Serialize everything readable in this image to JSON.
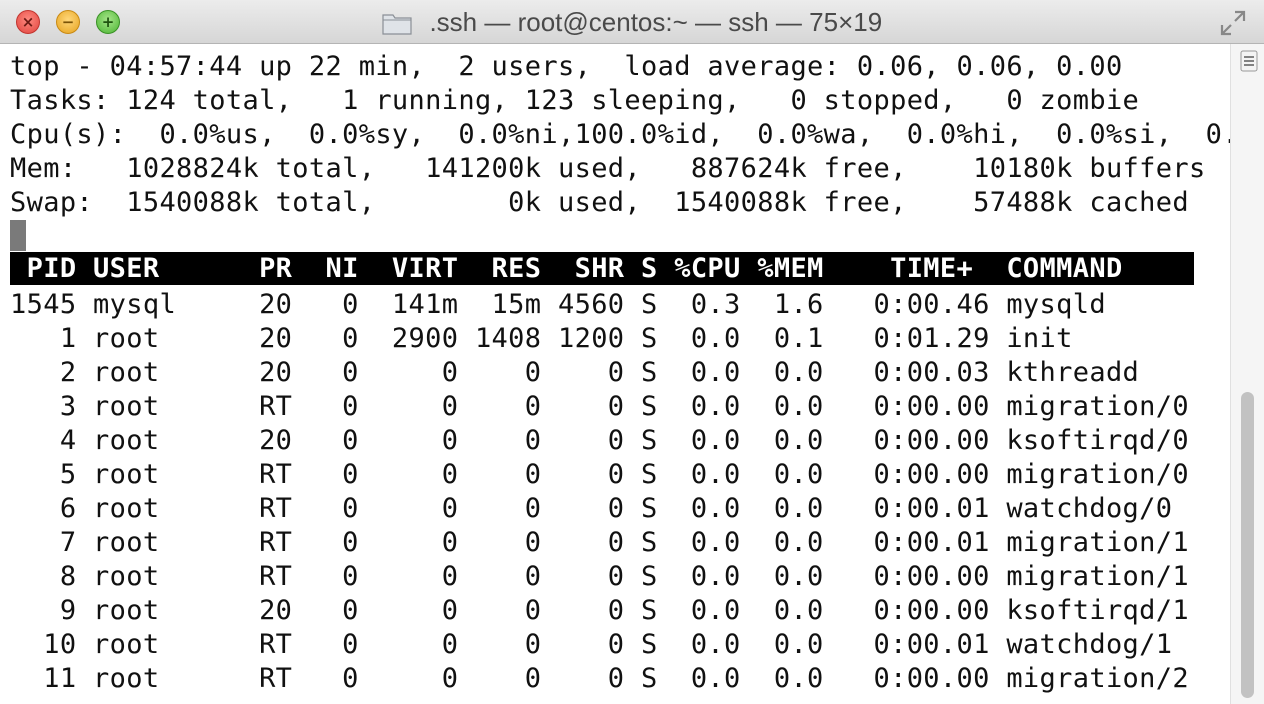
{
  "window": {
    "title": ".ssh — root@centos:~ — ssh — 75×19"
  },
  "summary": {
    "uptime_line": "top - 04:57:44 up 22 min,  2 users,  load average: 0.06, 0.06, 0.00",
    "tasks_line": "Tasks: 124 total,   1 running, 123 sleeping,   0 stopped,   0 zombie",
    "cpu_line": "Cpu(s):  0.0%us,  0.0%sy,  0.0%ni,100.0%id,  0.0%wa,  0.0%hi,  0.0%si,  0.",
    "mem_line": "Mem:   1028824k total,   141200k used,   887624k free,    10180k buffers",
    "swap_line": "Swap:  1540088k total,        0k used,  1540088k free,    57488k cached"
  },
  "table": {
    "header": " PID USER      PR  NI  VIRT  RES  SHR S %CPU %MEM    TIME+  COMMAND",
    "rows": [
      "1545 mysql     20   0  141m  15m 4560 S  0.3  1.6   0:00.46 mysqld",
      "   1 root      20   0  2900 1408 1200 S  0.0  0.1   0:01.29 init",
      "   2 root      20   0     0    0    0 S  0.0  0.0   0:00.03 kthreadd",
      "   3 root      RT   0     0    0    0 S  0.0  0.0   0:00.00 migration/0",
      "   4 root      20   0     0    0    0 S  0.0  0.0   0:00.00 ksoftirqd/0",
      "   5 root      RT   0     0    0    0 S  0.0  0.0   0:00.00 migration/0",
      "   6 root      RT   0     0    0    0 S  0.0  0.0   0:00.01 watchdog/0",
      "   7 root      RT   0     0    0    0 S  0.0  0.0   0:00.01 migration/1",
      "   8 root      RT   0     0    0    0 S  0.0  0.0   0:00.00 migration/1",
      "   9 root      20   0     0    0    0 S  0.0  0.0   0:00.00 ksoftirqd/1",
      "  10 root      RT   0     0    0    0 S  0.0  0.0   0:00.01 watchdog/1",
      "  11 root      RT   0     0    0    0 S  0.0  0.0   0:00.00 migration/2"
    ]
  },
  "icons": {
    "close": "close-icon",
    "minimize": "minimize-icon",
    "zoom": "zoom-icon",
    "folder": "folder-icon",
    "fullscreen": "fullscreen-icon",
    "scroll_menu": "hamburger-icon"
  }
}
